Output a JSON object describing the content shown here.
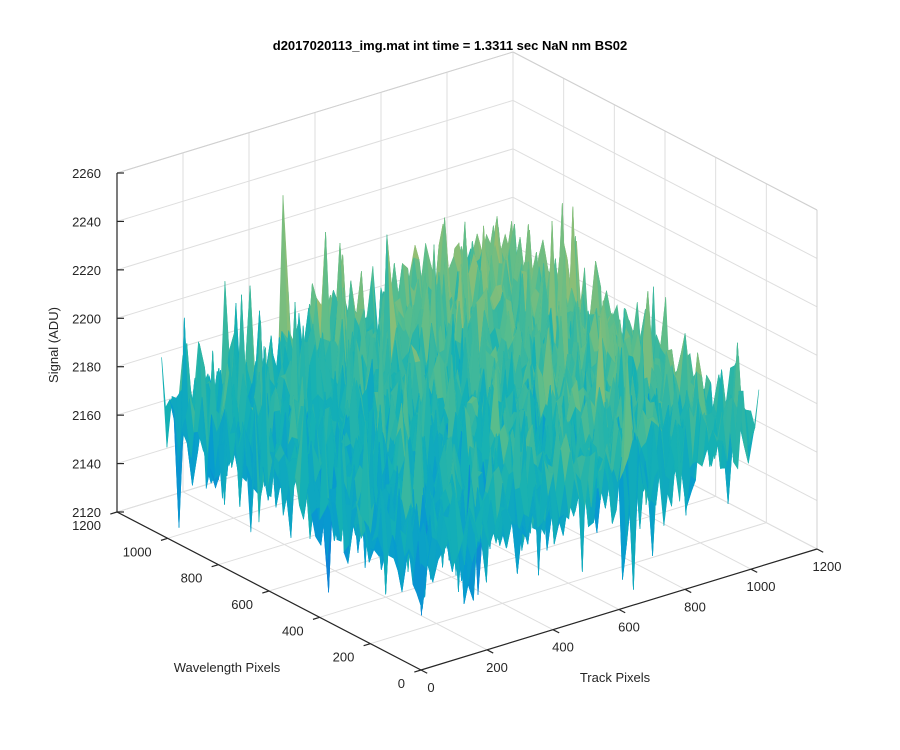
{
  "chart_data": {
    "type": "surface",
    "title": "d2017020113_img.mat int time = 1.3311 sec  NaN nm BS02",
    "xlabel": "Track Pixels",
    "ylabel": "Wavelength Pixels",
    "zlabel": "Signal (ADU)",
    "xlim": [
      0,
      1200
    ],
    "ylim": [
      0,
      1200
    ],
    "zlim": [
      2120,
      2260
    ],
    "xticks": [
      "0",
      "200",
      "400",
      "600",
      "800",
      "1000",
      "1200"
    ],
    "yticks": [
      "0",
      "200",
      "400",
      "600",
      "800",
      "1000",
      "1200"
    ],
    "zticks": [
      "2120",
      "2140",
      "2160",
      "2180",
      "2200",
      "2220",
      "2240",
      "2260"
    ],
    "surface_extent": {
      "x": [
        0,
        1024
      ],
      "y": [
        0,
        1024
      ]
    },
    "surface_mean_corners": {
      "x0_y0": 2165,
      "x1024_y0": 2178,
      "x0_y1024": 2170,
      "x1024_y1024": 2195
    },
    "noise_range_adu": [
      2125,
      2255
    ],
    "grid": true,
    "colormap": "parula",
    "colors": {
      "low": "#0072bd",
      "mid": "#20b2aa",
      "high": "#f0c030"
    }
  }
}
